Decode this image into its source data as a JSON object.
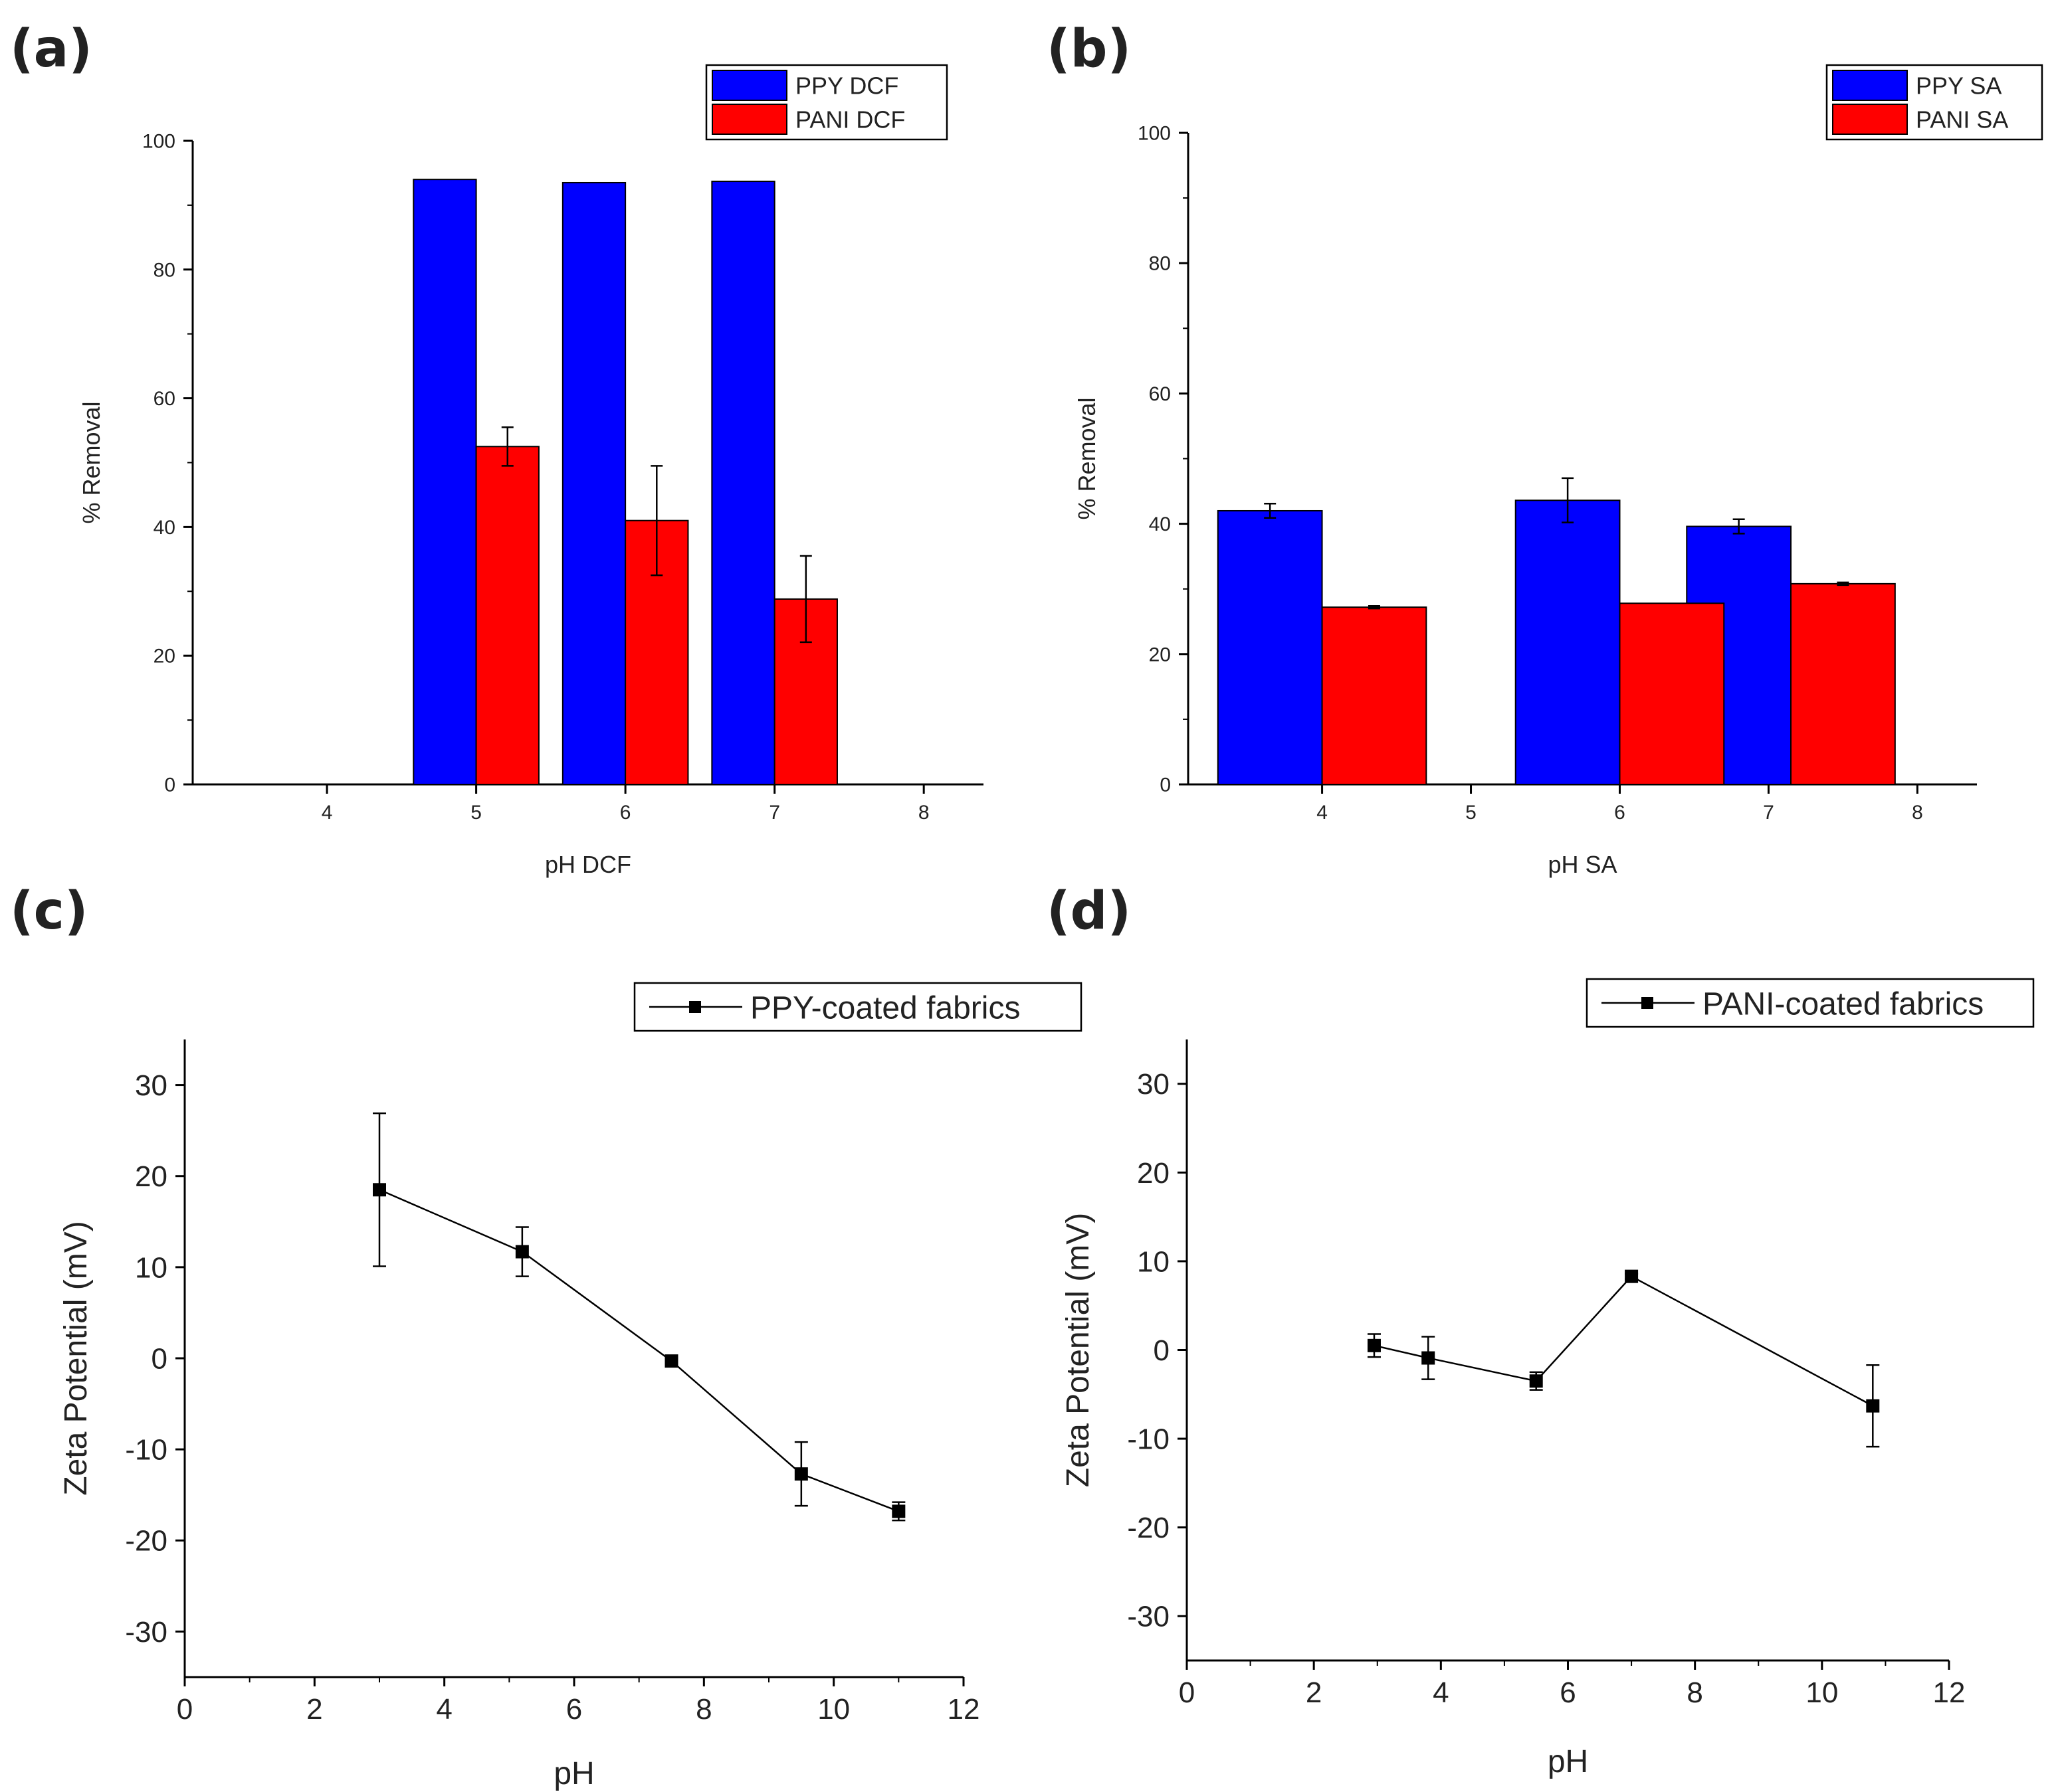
{
  "chart_data": [
    {
      "panel": "(a)",
      "type": "bar",
      "xlabel": "pH DCF",
      "ylabel": "% Removal",
      "xlim": [
        3.1,
        8.4
      ],
      "ylim": [
        0,
        100
      ],
      "xticks": [
        4,
        5,
        6,
        7,
        8
      ],
      "yticks": [
        0,
        20,
        40,
        60,
        80,
        100
      ],
      "legend": "top-right",
      "bar_width": 0.42,
      "series": [
        {
          "name": "PPY DCF",
          "color": "#0000ff",
          "offset": "left",
          "x": [
            5,
            6,
            7
          ],
          "values": [
            94,
            93.5,
            93.7
          ],
          "errors": [
            0,
            0,
            0
          ]
        },
        {
          "name": "PANI DCF",
          "color": "#ff0000",
          "offset": "right",
          "x": [
            5,
            6,
            7
          ],
          "values": [
            52.5,
            41,
            28.8
          ],
          "errors": [
            3,
            8.5,
            6.7
          ]
        }
      ]
    },
    {
      "panel": "(b)",
      "type": "bar",
      "xlabel": "pH SA",
      "ylabel": "% Removal",
      "xlim": [
        3.1,
        8.4
      ],
      "ylim": [
        0,
        100
      ],
      "xticks": [
        4,
        5,
        6,
        7,
        8
      ],
      "yticks": [
        0,
        20,
        40,
        60,
        80,
        100
      ],
      "legend": "top-right",
      "bar_width": 0.7,
      "series": [
        {
          "name": "PPY SA",
          "color": "#0000ff",
          "offset": "left",
          "x": [
            4,
            6,
            7.15
          ],
          "values": [
            42,
            43.6,
            39.6
          ],
          "errors": [
            1.1,
            3.4,
            1.1
          ]
        },
        {
          "name": "PANI SA",
          "color": "#ff0000",
          "offset": "right",
          "x": [
            4,
            6,
            7.15
          ],
          "values": [
            27.2,
            27.8,
            30.8
          ],
          "errors": [
            0.2,
            0,
            0.2
          ]
        }
      ]
    },
    {
      "panel": "(c)",
      "type": "line",
      "xlabel": "pH",
      "ylabel": "Zeta Potential (mV)",
      "xlim": [
        0,
        12
      ],
      "ylim": [
        -35,
        35
      ],
      "xticks": [
        0,
        2,
        4,
        6,
        8,
        10,
        12
      ],
      "yticks": [
        -30,
        -20,
        -10,
        0,
        10,
        20,
        30
      ],
      "legend": "top-right",
      "series": [
        {
          "name": "PPY-coated fabrics",
          "color": "#000000",
          "x": [
            3.0,
            5.2,
            7.5,
            9.5,
            11.0
          ],
          "y": [
            18.5,
            11.7,
            -0.3,
            -12.7,
            -16.8
          ],
          "errors": [
            8.4,
            2.7,
            0.4,
            3.5,
            1.0
          ]
        }
      ]
    },
    {
      "panel": "(d)",
      "type": "line",
      "xlabel": "pH",
      "ylabel": "Zeta Potential (mV)",
      "xlim": [
        0,
        12
      ],
      "ylim": [
        -35,
        35
      ],
      "xticks": [
        0,
        2,
        4,
        6,
        8,
        10,
        12
      ],
      "yticks": [
        -30,
        -20,
        -10,
        0,
        10,
        20,
        30
      ],
      "legend": "top-right",
      "series": [
        {
          "name": "PANI-coated fabrics",
          "color": "#000000",
          "x": [
            2.95,
            3.8,
            5.5,
            7.0,
            10.8
          ],
          "y": [
            0.5,
            -0.9,
            -3.5,
            8.3,
            -6.3
          ],
          "errors": [
            1.3,
            2.4,
            1.0,
            0.3,
            4.6
          ]
        }
      ]
    }
  ]
}
